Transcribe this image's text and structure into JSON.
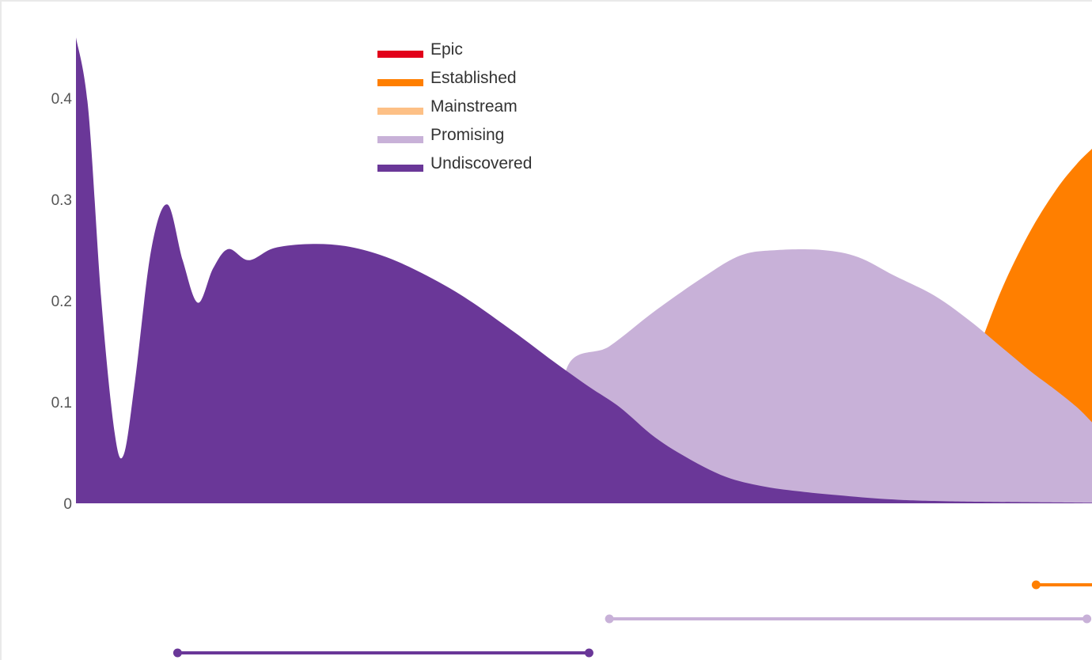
{
  "chart_data": {
    "type": "area",
    "title": "",
    "xlabel": "",
    "ylabel": "",
    "ylim": [
      0,
      0.46
    ],
    "y_ticks": [
      "0",
      "0.1",
      "0.2",
      "0.3",
      "0.4"
    ],
    "y_tick_values": [
      0,
      0.1,
      0.2,
      0.3,
      0.4
    ],
    "legend_position": "top-center",
    "x_domain": [
      0,
      100
    ],
    "series": [
      {
        "name": "Epic",
        "color": "#e2001a",
        "points": []
      },
      {
        "name": "Established",
        "color": "#ff7f00",
        "points": [
          [
            86.5,
            0.0
          ],
          [
            87.0,
            0.1
          ],
          [
            89.5,
            0.17
          ],
          [
            91.5,
            0.22
          ],
          [
            94.0,
            0.27
          ],
          [
            96.5,
            0.31
          ],
          [
            98.5,
            0.335
          ],
          [
            100,
            0.35
          ]
        ],
        "range": [
          94.5,
          100
        ]
      },
      {
        "name": "Mainstream",
        "color": "#fdc086",
        "points": [
          [
            99.2,
            0.0
          ],
          [
            99.4,
            0.08
          ],
          [
            99.7,
            0.095
          ],
          [
            100,
            0.098
          ]
        ]
      },
      {
        "name": "Promising",
        "color": "#c8b1d8",
        "points": [
          [
            48.0,
            0.0
          ],
          [
            48.2,
            0.13
          ],
          [
            52.5,
            0.155
          ],
          [
            57.0,
            0.19
          ],
          [
            62.0,
            0.225
          ],
          [
            65.5,
            0.245
          ],
          [
            69.0,
            0.25
          ],
          [
            73.5,
            0.25
          ],
          [
            77.0,
            0.243
          ],
          [
            80.5,
            0.225
          ],
          [
            84.5,
            0.205
          ],
          [
            88.0,
            0.18
          ],
          [
            91.0,
            0.155
          ],
          [
            94.0,
            0.13
          ],
          [
            96.0,
            0.115
          ],
          [
            98.5,
            0.095
          ],
          [
            100,
            0.08
          ]
        ],
        "range": [
          52.5,
          99.5
        ]
      },
      {
        "name": "Undiscovered",
        "color": "#6a3798",
        "points": [
          [
            0,
            0.46
          ],
          [
            1.2,
            0.39
          ],
          [
            2.5,
            0.2
          ],
          [
            3.8,
            0.07
          ],
          [
            4.7,
            0.048
          ],
          [
            5.8,
            0.12
          ],
          [
            7.4,
            0.25
          ],
          [
            9.0,
            0.295
          ],
          [
            10.5,
            0.24
          ],
          [
            12.0,
            0.198
          ],
          [
            13.5,
            0.232
          ],
          [
            15.0,
            0.251
          ],
          [
            17.0,
            0.24
          ],
          [
            19.5,
            0.252
          ],
          [
            23.0,
            0.256
          ],
          [
            26.5,
            0.254
          ],
          [
            30.0,
            0.245
          ],
          [
            33.5,
            0.23
          ],
          [
            38.0,
            0.205
          ],
          [
            43.0,
            0.17
          ],
          [
            47.0,
            0.14
          ],
          [
            50.5,
            0.115
          ],
          [
            53.5,
            0.095
          ],
          [
            57.0,
            0.065
          ],
          [
            60.5,
            0.043
          ],
          [
            64.0,
            0.026
          ],
          [
            67.5,
            0.017
          ],
          [
            71.0,
            0.012
          ],
          [
            75.0,
            0.008
          ],
          [
            80.0,
            0.004
          ],
          [
            86.0,
            0.002
          ],
          [
            100,
            0.0005
          ]
        ],
        "range": [
          10.0,
          50.5
        ]
      }
    ]
  }
}
